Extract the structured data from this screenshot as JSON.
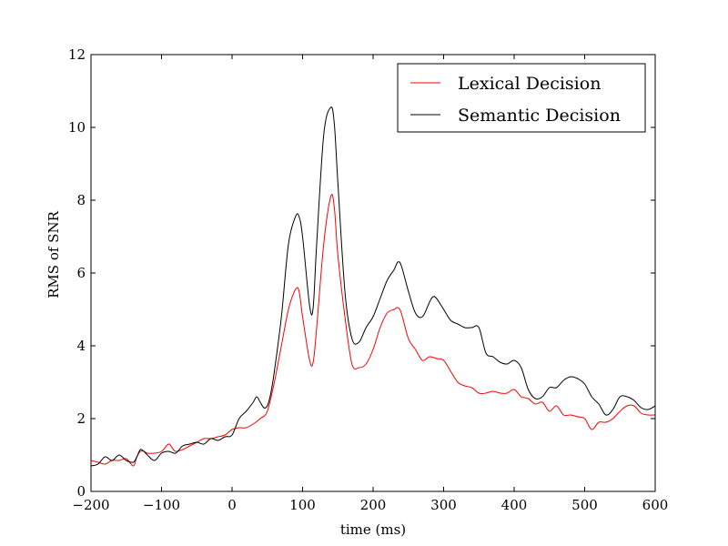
{
  "chart_data": {
    "type": "line",
    "title": "",
    "xlabel": "time (ms)",
    "ylabel": "RMS of SNR",
    "xlim": [
      -200,
      600
    ],
    "ylim": [
      0,
      12
    ],
    "xticks": [
      -200,
      -100,
      0,
      100,
      200,
      300,
      400,
      500,
      600
    ],
    "xtick_labels": [
      "−200",
      "−100",
      "0",
      "100",
      "200",
      "300",
      "400",
      "500",
      "600"
    ],
    "yticks": [
      0,
      2,
      4,
      6,
      8,
      10,
      12
    ],
    "ytick_labels": [
      "0",
      "2",
      "4",
      "6",
      "8",
      "10",
      "12"
    ],
    "grid": false,
    "legend_position": "top-right",
    "series": [
      {
        "name": "Lexical Decision",
        "color": "#ff0000",
        "x": [
          -200,
          -190,
          -180,
          -170,
          -160,
          -150,
          -140,
          -135,
          -130,
          -125,
          -120,
          -110,
          -100,
          -90,
          -85,
          -80,
          -70,
          -60,
          -50,
          -40,
          -30,
          -20,
          -10,
          0,
          10,
          20,
          30,
          40,
          50,
          60,
          65,
          70,
          80,
          90,
          95,
          100,
          110,
          115,
          120,
          130,
          140,
          145,
          150,
          160,
          170,
          180,
          190,
          200,
          210,
          220,
          230,
          235,
          240,
          250,
          260,
          270,
          280,
          290,
          300,
          310,
          320,
          330,
          340,
          350,
          360,
          370,
          380,
          390,
          400,
          410,
          420,
          430,
          440,
          450,
          460,
          470,
          480,
          490,
          500,
          510,
          520,
          530,
          540,
          550,
          560,
          570,
          580,
          590,
          600
        ],
        "y": [
          0.85,
          0.8,
          0.75,
          0.85,
          0.85,
          0.9,
          0.7,
          0.95,
          1.1,
          1.1,
          1.05,
          1.05,
          1.1,
          1.3,
          1.2,
          1.1,
          1.15,
          1.25,
          1.35,
          1.45,
          1.45,
          1.5,
          1.55,
          1.7,
          1.75,
          1.75,
          1.85,
          2.0,
          2.2,
          3.0,
          3.5,
          4.0,
          5.0,
          5.55,
          5.5,
          4.8,
          3.6,
          3.55,
          4.5,
          6.8,
          8.1,
          7.8,
          6.5,
          4.8,
          3.5,
          3.4,
          3.5,
          3.9,
          4.5,
          4.9,
          5.0,
          5.05,
          4.9,
          4.2,
          3.9,
          3.6,
          3.7,
          3.65,
          3.6,
          3.3,
          3.0,
          2.9,
          2.85,
          2.7,
          2.7,
          2.75,
          2.7,
          2.7,
          2.8,
          2.6,
          2.55,
          2.4,
          2.45,
          2.2,
          2.35,
          2.1,
          2.1,
          2.05,
          2.0,
          1.7,
          1.9,
          1.9,
          2.0,
          2.2,
          2.35,
          2.35,
          2.15,
          2.1,
          2.1
        ]
      },
      {
        "name": "Semantic Decision",
        "color": "#000000",
        "x": [
          -200,
          -190,
          -180,
          -170,
          -160,
          -150,
          -140,
          -135,
          -130,
          -125,
          -120,
          -110,
          -100,
          -90,
          -80,
          -70,
          -60,
          -50,
          -40,
          -30,
          -20,
          -10,
          0,
          10,
          20,
          30,
          35,
          40,
          45,
          50,
          55,
          60,
          70,
          80,
          90,
          95,
          100,
          110,
          115,
          120,
          130,
          140,
          145,
          150,
          160,
          170,
          180,
          190,
          200,
          210,
          220,
          230,
          235,
          240,
          250,
          260,
          270,
          280,
          285,
          290,
          300,
          310,
          320,
          330,
          340,
          350,
          360,
          370,
          380,
          390,
          400,
          410,
          420,
          430,
          440,
          450,
          460,
          470,
          480,
          490,
          500,
          510,
          520,
          530,
          540,
          550,
          560,
          570,
          580,
          590,
          600
        ],
        "y": [
          0.7,
          0.75,
          0.95,
          0.85,
          1.0,
          0.85,
          0.8,
          0.95,
          1.15,
          1.1,
          1.0,
          0.85,
          1.05,
          1.1,
          1.05,
          1.25,
          1.3,
          1.35,
          1.3,
          1.45,
          1.4,
          1.5,
          1.55,
          2.0,
          2.2,
          2.45,
          2.6,
          2.45,
          2.3,
          2.35,
          2.7,
          3.3,
          4.8,
          6.8,
          7.55,
          7.55,
          7.0,
          5.1,
          5.05,
          6.8,
          9.8,
          10.55,
          10.1,
          8.5,
          5.5,
          4.2,
          4.1,
          4.5,
          4.8,
          5.3,
          5.8,
          6.1,
          6.3,
          6.2,
          5.5,
          4.9,
          4.8,
          5.2,
          5.35,
          5.3,
          5.0,
          4.7,
          4.6,
          4.5,
          4.5,
          4.5,
          3.8,
          3.7,
          3.55,
          3.5,
          3.6,
          3.4,
          2.8,
          2.55,
          2.6,
          2.85,
          2.85,
          3.05,
          3.15,
          3.1,
          2.95,
          2.6,
          2.4,
          2.1,
          2.25,
          2.6,
          2.6,
          2.5,
          2.3,
          2.25,
          2.35
        ]
      }
    ]
  }
}
